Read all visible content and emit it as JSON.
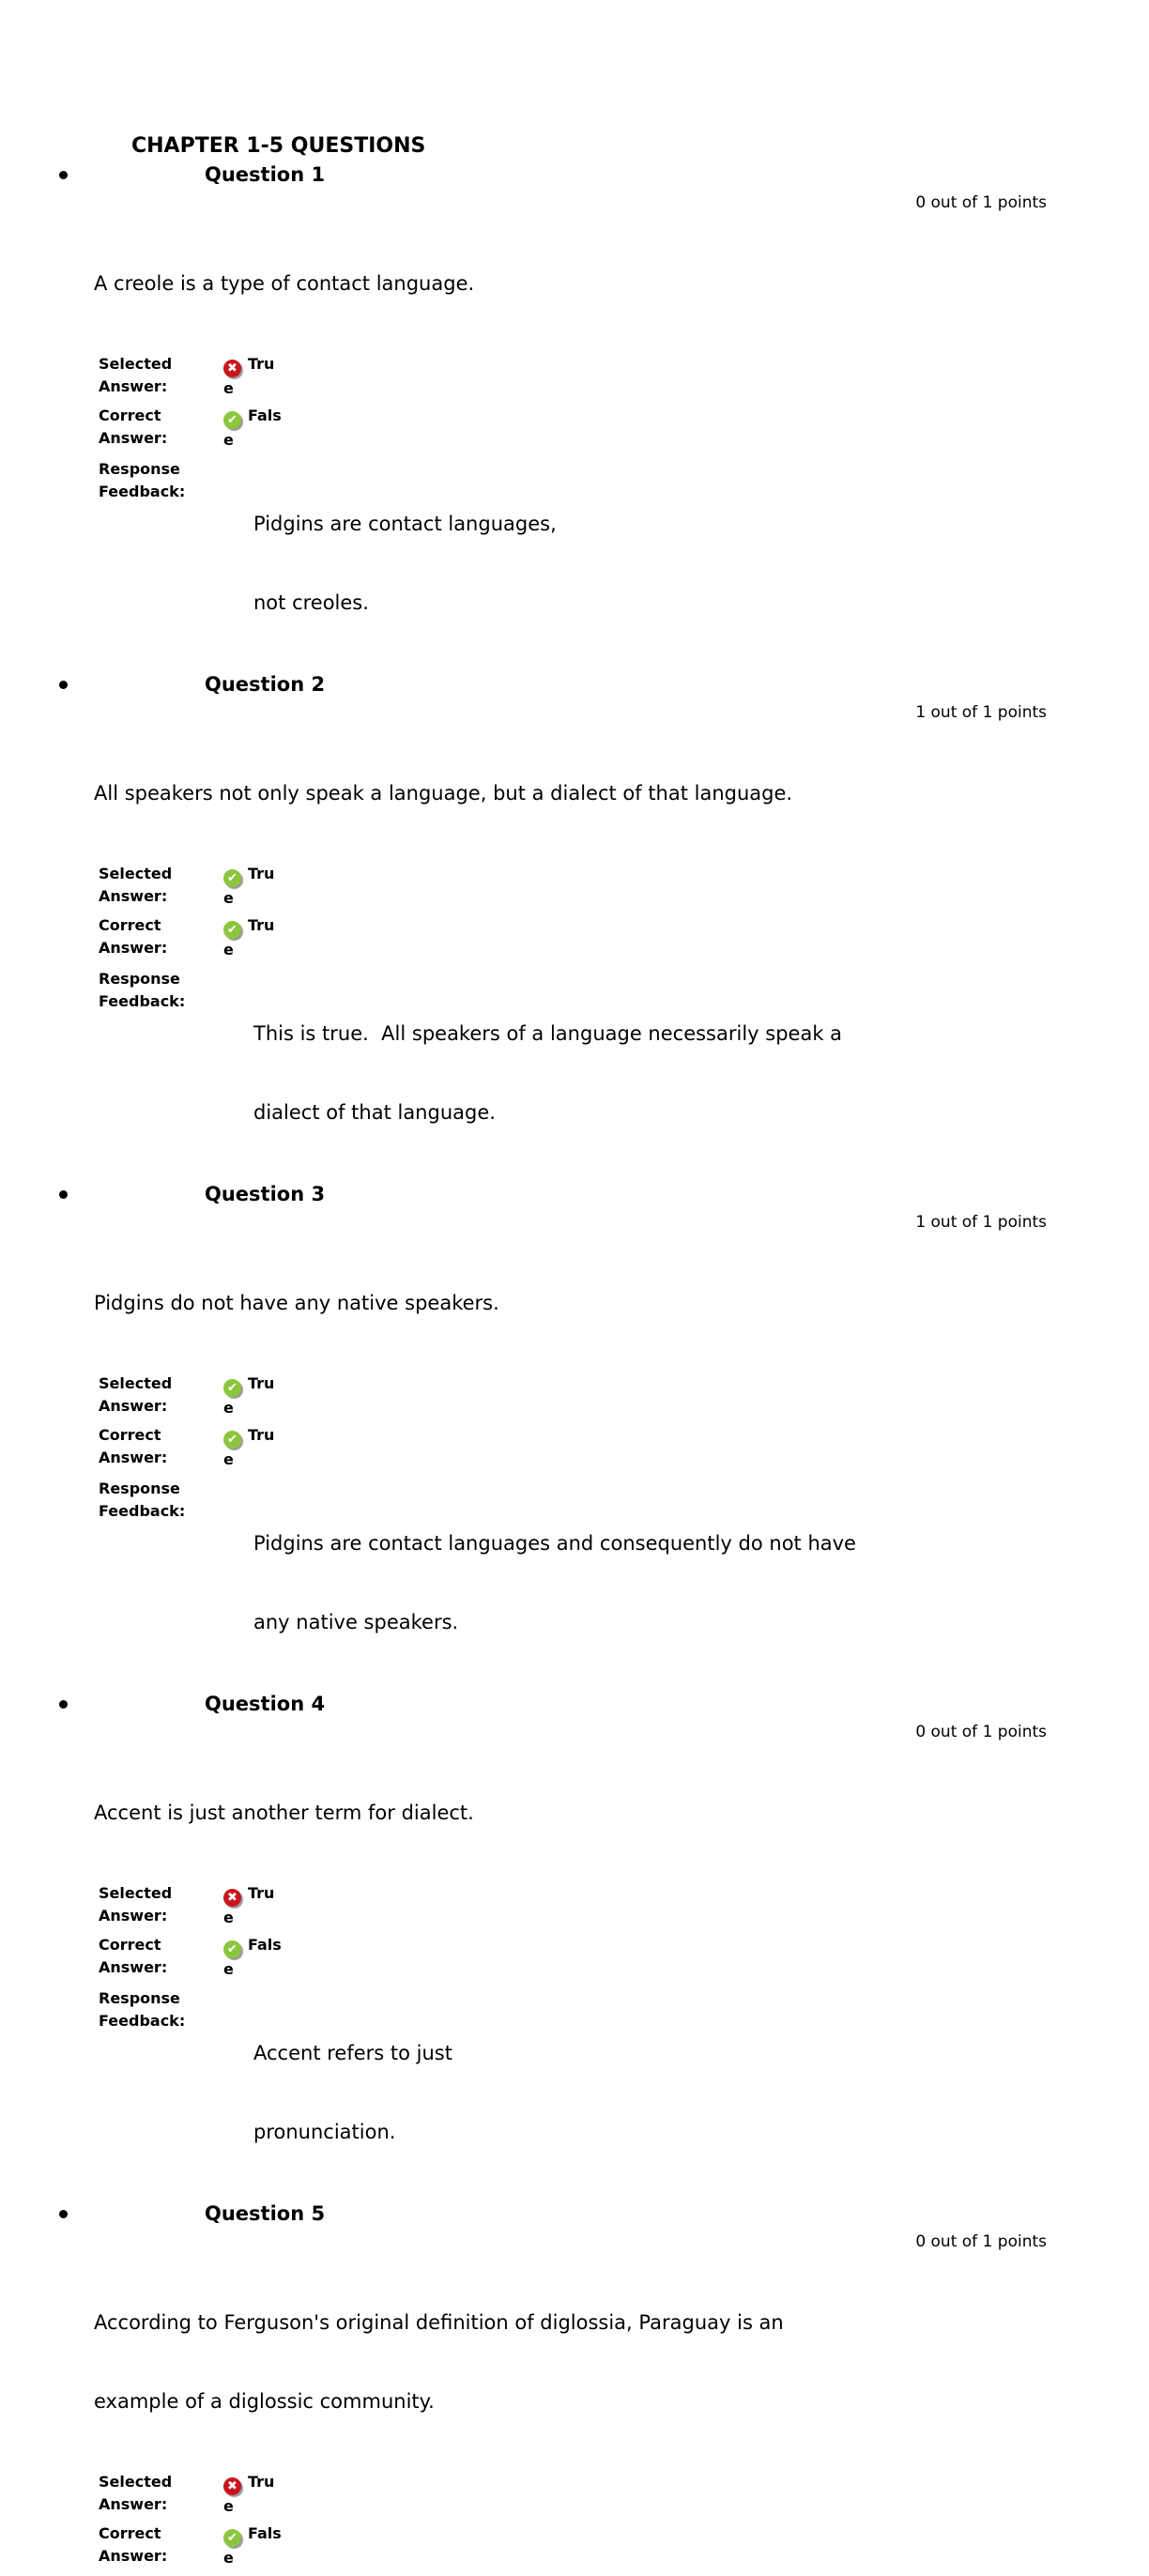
{
  "doc_title": "CHAPTER 1-5 QUESTIONS",
  "labels": {
    "selected": [
      "Selected",
      "Answer:"
    ],
    "correct": [
      "Correct",
      "Answer:"
    ],
    "feedback": [
      "Response",
      "Feedback:"
    ]
  },
  "icons": {
    "check_glyph": "✔",
    "cross_glyph": "✖"
  },
  "colors": {
    "correct_green": "#8cc63e",
    "incorrect_red": "#c9161d",
    "icon_shadow_gray": "#999999",
    "text_black": "#000000",
    "background_white": "#ffffff"
  },
  "questions": [
    {
      "title": "Question 1",
      "points": "0 out of 1 points",
      "text_lines": [
        "A creole is a type of contact language."
      ],
      "selected": {
        "status": "incorrect",
        "value": "True"
      },
      "correct": {
        "status": "correct",
        "value": "False"
      },
      "feedback_lines": [
        "Pidgins are contact languages,",
        "not creoles."
      ]
    },
    {
      "title": "Question 2",
      "points": "1 out of 1 points",
      "text_lines": [
        "All speakers not only speak a language, but a dialect of that language."
      ],
      "selected": {
        "status": "correct",
        "value": "True"
      },
      "correct": {
        "status": "correct",
        "value": "True"
      },
      "feedback_lines": [
        "This is true.  All speakers of a language necessarily speak a",
        "dialect of that language."
      ]
    },
    {
      "title": "Question 3",
      "points": "1 out of 1 points",
      "text_lines": [
        "Pidgins do not have any native speakers."
      ],
      "selected": {
        "status": "correct",
        "value": "True"
      },
      "correct": {
        "status": "correct",
        "value": "True"
      },
      "feedback_lines": [
        "Pidgins are contact languages and consequently do not have",
        "any native speakers."
      ]
    },
    {
      "title": "Question 4",
      "points": "0 out of 1 points",
      "text_lines": [
        "Accent is just another term for dialect."
      ],
      "selected": {
        "status": "incorrect",
        "value": "True"
      },
      "correct": {
        "status": "correct",
        "value": "False"
      },
      "feedback_lines": [
        "Accent refers to just",
        "pronunciation."
      ]
    },
    {
      "title": "Question 5",
      "points": "0 out of 1 points",
      "text_lines": [
        "According to Ferguson's original definition of diglossia, Paraguay is an",
        "example of a diglossic community."
      ],
      "selected": {
        "status": "incorrect",
        "value": "True"
      },
      "correct": {
        "status": "correct",
        "value": "False"
      },
      "feedback_lines": []
    }
  ]
}
